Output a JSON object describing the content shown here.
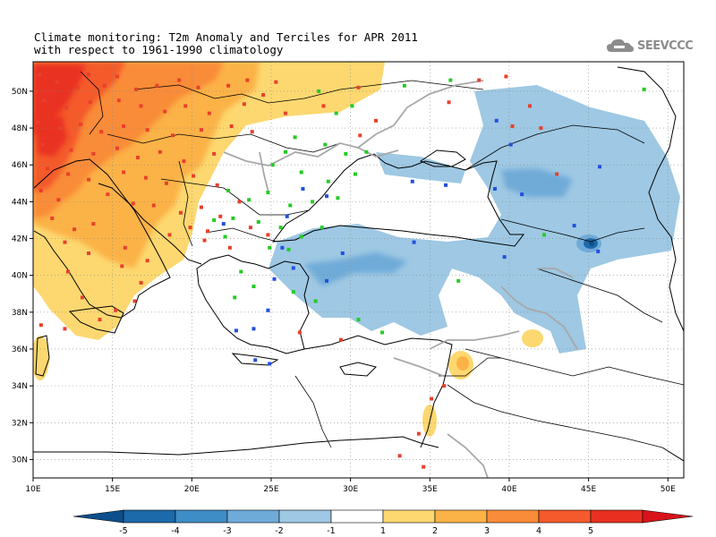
{
  "title": {
    "line1": "Climate monitoring: T2m Anomaly and Terciles for APR 2011",
    "line2": "with respect to 1961-1990 climatology"
  },
  "logo": {
    "text": "SEEVCCC",
    "icon": "cloud-icon"
  },
  "map": {
    "lon_range": [
      10,
      51
    ],
    "lat_range": [
      29,
      51.6
    ],
    "lon_ticks": [
      {
        "value": 10,
        "label": "10E"
      },
      {
        "value": 15,
        "label": "15E"
      },
      {
        "value": 20,
        "label": "20E"
      },
      {
        "value": 25,
        "label": "25E"
      },
      {
        "value": 30,
        "label": "30E"
      },
      {
        "value": 35,
        "label": "35E"
      },
      {
        "value": 40,
        "label": "40E"
      },
      {
        "value": 45,
        "label": "45E"
      },
      {
        "value": 50,
        "label": "50E"
      }
    ],
    "lat_ticks": [
      {
        "value": 30,
        "label": "30N"
      },
      {
        "value": 32,
        "label": "32N"
      },
      {
        "value": 34,
        "label": "34N"
      },
      {
        "value": 36,
        "label": "36N"
      },
      {
        "value": 38,
        "label": "38N"
      },
      {
        "value": 40,
        "label": "40N"
      },
      {
        "value": 42,
        "label": "42N"
      },
      {
        "value": 44,
        "label": "44N"
      },
      {
        "value": 46,
        "label": "46N"
      },
      {
        "value": 48,
        "label": "48N"
      },
      {
        "value": 50,
        "label": "50N"
      }
    ],
    "grid": true
  },
  "colorbar": {
    "labels": [
      "-5",
      "-4",
      "-3",
      "-2",
      "-1",
      "1",
      "2",
      "3",
      "4",
      "5"
    ],
    "colors": [
      "#0d4f8b",
      "#1c6aaa",
      "#3f8dc6",
      "#6fabd8",
      "#9ec8e3",
      "#ffffff",
      "#fdd870",
      "#fbb246",
      "#f98c38",
      "#f45a2c",
      "#e93020",
      "#d8141a"
    ]
  },
  "colors": {
    "warm_strong": "#e93020",
    "warm_red": "#f45a2c",
    "warm_orange": "#f98c38",
    "warm_mid": "#fbb246",
    "warm_light": "#fdd870",
    "cool_light": "#9ec8e3",
    "cool_mid": "#6fabd8",
    "cool_dark": "#3f8dc6",
    "cool_darker": "#1c6aaa",
    "cool_deep": "#0d4f8b",
    "marker_above": "#e8402c",
    "marker_normal": "#22cc22",
    "marker_below": "#2050e0",
    "coast": "#000000",
    "border": "#000000",
    "river": "#a0a0a0",
    "grid": "#888888"
  },
  "markers": {
    "above": [
      [
        10.4,
        50.9
      ],
      [
        11.5,
        50.5
      ],
      [
        12.8,
        50.2
      ],
      [
        13.5,
        50.9
      ],
      [
        14.5,
        50.3
      ],
      [
        15.3,
        50.8
      ],
      [
        16.5,
        50.1
      ],
      [
        17.8,
        50.3
      ],
      [
        19.2,
        50.6
      ],
      [
        20.4,
        50.2
      ],
      [
        22.3,
        50.3
      ],
      [
        23.5,
        50.6
      ],
      [
        25.3,
        50.5
      ],
      [
        10.7,
        49.5
      ],
      [
        12.1,
        49.1
      ],
      [
        13.6,
        49.4
      ],
      [
        15.4,
        49.5
      ],
      [
        16.8,
        49.2
      ],
      [
        18.3,
        48.9
      ],
      [
        19.6,
        49.2
      ],
      [
        21.1,
        48.8
      ],
      [
        10.3,
        48.3
      ],
      [
        11.7,
        48.0
      ],
      [
        13.0,
        48.2
      ],
      [
        14.3,
        47.8
      ],
      [
        15.7,
        48.1
      ],
      [
        17.2,
        47.9
      ],
      [
        18.8,
        47.6
      ],
      [
        20.6,
        47.9
      ],
      [
        22.5,
        48.1
      ],
      [
        23.8,
        47.8
      ],
      [
        10.6,
        47.1
      ],
      [
        12.4,
        46.8
      ],
      [
        13.8,
        46.6
      ],
      [
        15.3,
        46.9
      ],
      [
        16.6,
        46.4
      ],
      [
        18.0,
        46.7
      ],
      [
        19.5,
        46.2
      ],
      [
        21.4,
        46.6
      ],
      [
        10.9,
        45.8
      ],
      [
        12.2,
        45.5
      ],
      [
        13.5,
        45.2
      ],
      [
        15.7,
        45.6
      ],
      [
        17.1,
        45.3
      ],
      [
        18.4,
        45.0
      ],
      [
        20.1,
        45.4
      ],
      [
        21.6,
        44.9
      ],
      [
        10.5,
        44.6
      ],
      [
        11.6,
        44.1
      ],
      [
        14.7,
        44.4
      ],
      [
        16.3,
        43.9
      ],
      [
        17.6,
        43.8
      ],
      [
        19.3,
        43.4
      ],
      [
        20.6,
        43.7
      ],
      [
        21.8,
        43.2
      ],
      [
        23.0,
        44.0
      ],
      [
        11.2,
        43.1
      ],
      [
        12.6,
        42.5
      ],
      [
        13.8,
        42.8
      ],
      [
        18.6,
        42.2
      ],
      [
        19.9,
        42.6
      ],
      [
        21.0,
        42.4
      ],
      [
        12.0,
        41.8
      ],
      [
        13.5,
        41.2
      ],
      [
        15.8,
        41.5
      ],
      [
        17.2,
        40.8
      ],
      [
        20.8,
        41.9
      ],
      [
        22.4,
        41.5
      ],
      [
        23.7,
        42.6
      ],
      [
        24.8,
        42.2
      ],
      [
        12.2,
        40.2
      ],
      [
        15.6,
        40.5
      ],
      [
        16.8,
        39.6
      ],
      [
        15.2,
        38.1
      ],
      [
        13.1,
        38.8
      ],
      [
        14.2,
        37.6
      ],
      [
        12.0,
        37.1
      ],
      [
        16.4,
        38.6
      ],
      [
        10.5,
        37.3
      ],
      [
        23.3,
        49.3
      ],
      [
        24.5,
        49.8
      ],
      [
        28.3,
        49.2
      ],
      [
        25.9,
        48.8
      ],
      [
        30.5,
        50.2
      ],
      [
        39.8,
        50.8
      ],
      [
        30.6,
        47.6
      ],
      [
        31.6,
        48.4
      ],
      [
        36.2,
        49.4
      ],
      [
        40.2,
        48.1
      ],
      [
        42.0,
        48.0
      ],
      [
        41.3,
        49.2
      ],
      [
        43.0,
        45.5
      ],
      [
        26.8,
        36.9
      ],
      [
        29.4,
        36.5
      ],
      [
        35.1,
        33.3
      ],
      [
        35.9,
        34.0
      ],
      [
        34.3,
        31.4
      ],
      [
        34.6,
        29.6
      ],
      [
        33.1,
        30.2
      ],
      [
        38.1,
        50.6
      ]
    ],
    "normal": [
      [
        28.0,
        50.0
      ],
      [
        30.1,
        49.2
      ],
      [
        33.4,
        50.3
      ],
      [
        36.3,
        50.6
      ],
      [
        29.1,
        48.8
      ],
      [
        26.5,
        47.5
      ],
      [
        28.4,
        47.1
      ],
      [
        29.7,
        46.6
      ],
      [
        31.0,
        46.7
      ],
      [
        25.1,
        46.0
      ],
      [
        26.9,
        45.6
      ],
      [
        28.6,
        45.1
      ],
      [
        30.3,
        45.5
      ],
      [
        22.3,
        44.6
      ],
      [
        23.6,
        44.1
      ],
      [
        24.8,
        44.5
      ],
      [
        26.2,
        43.8
      ],
      [
        27.6,
        44.0
      ],
      [
        29.2,
        44.2
      ],
      [
        21.4,
        43.0
      ],
      [
        22.6,
        43.1
      ],
      [
        24.2,
        42.9
      ],
      [
        25.6,
        42.6
      ],
      [
        26.9,
        42.1
      ],
      [
        28.2,
        42.6
      ],
      [
        22.1,
        42.1
      ],
      [
        24.9,
        41.5
      ],
      [
        26.1,
        41.4
      ],
      [
        23.1,
        40.2
      ],
      [
        23.9,
        39.4
      ],
      [
        26.4,
        39.1
      ],
      [
        27.8,
        38.6
      ],
      [
        30.5,
        37.6
      ],
      [
        32.0,
        36.9
      ],
      [
        36.8,
        39.7
      ],
      [
        42.2,
        42.2
      ],
      [
        48.5,
        50.1
      ],
      [
        22.7,
        38.8
      ],
      [
        25.9,
        46.7
      ]
    ],
    "below": [
      [
        27.0,
        44.7
      ],
      [
        28.5,
        44.3
      ],
      [
        26.0,
        43.2
      ],
      [
        34.0,
        41.8
      ],
      [
        25.7,
        41.5
      ],
      [
        26.4,
        40.4
      ],
      [
        28.5,
        39.7
      ],
      [
        24.8,
        38.1
      ],
      [
        23.9,
        37.1
      ],
      [
        22.8,
        37.0
      ],
      [
        24.0,
        35.4
      ],
      [
        24.9,
        35.2
      ],
      [
        29.5,
        41.2
      ],
      [
        39.7,
        41.0
      ],
      [
        39.2,
        48.4
      ],
      [
        40.1,
        47.1
      ],
      [
        33.9,
        45.1
      ],
      [
        36.0,
        44.9
      ],
      [
        39.1,
        44.7
      ],
      [
        40.8,
        44.4
      ],
      [
        45.7,
        45.9
      ],
      [
        44.1,
        42.7
      ],
      [
        45.6,
        41.3
      ],
      [
        22.0,
        42.8
      ],
      [
        25.2,
        39.8
      ]
    ]
  }
}
